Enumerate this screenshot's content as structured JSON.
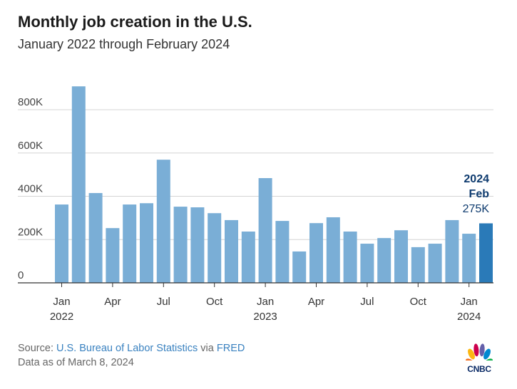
{
  "title": "Monthly job creation in the U.S.",
  "subtitle": "January 2022 through February 2024",
  "chart_data": {
    "type": "bar",
    "title": "Monthly job creation in the U.S.",
    "subtitle": "January 2022 through February 2024",
    "categories": [
      "Jan 2022",
      "Feb 2022",
      "Mar 2022",
      "Apr 2022",
      "May 2022",
      "Jun 2022",
      "Jul 2022",
      "Aug 2022",
      "Sep 2022",
      "Oct 2022",
      "Nov 2022",
      "Dec 2022",
      "Jan 2023",
      "Feb 2023",
      "Mar 2023",
      "Apr 2023",
      "May 2023",
      "Jun 2023",
      "Jul 2023",
      "Aug 2023",
      "Sep 2023",
      "Oct 2023",
      "Nov 2023",
      "Dec 2023",
      "Jan 2024",
      "Feb 2024"
    ],
    "values": [
      362,
      908,
      415,
      253,
      362,
      368,
      569,
      352,
      349,
      322,
      290,
      237,
      484,
      286,
      145,
      276,
      303,
      237,
      181,
      207,
      243,
      165,
      181,
      290,
      227,
      275
    ],
    "units": "thousands",
    "ylim": [
      0,
      950
    ],
    "yticks": [
      0,
      200,
      400,
      600,
      800
    ],
    "ytick_labels": [
      "0",
      "200K",
      "400K",
      "600K",
      "800K"
    ],
    "xticks": [
      {
        "index": 0,
        "label": "Jan",
        "year": "2022"
      },
      {
        "index": 3,
        "label": "Apr"
      },
      {
        "index": 6,
        "label": "Jul"
      },
      {
        "index": 9,
        "label": "Oct"
      },
      {
        "index": 12,
        "label": "Jan",
        "year": "2023"
      },
      {
        "index": 15,
        "label": "Apr"
      },
      {
        "index": 18,
        "label": "Jul"
      },
      {
        "index": 21,
        "label": "Oct"
      },
      {
        "index": 24,
        "label": "Jan",
        "year": "2024"
      }
    ],
    "annotation": {
      "year": "2024",
      "month": "Feb",
      "value": "275K"
    },
    "grid": true,
    "colors": {
      "bar": "#7aaed6",
      "highlight": "#2a7ab8",
      "annotation": "#0d3a6e"
    }
  },
  "footer": {
    "source_prefix": "Source: ",
    "source_link": "U.S. Bureau of Labor Statistics",
    "source_via": " via ",
    "source_fred": "FRED",
    "data_as_of": "Data as of March 8, 2024"
  },
  "logo": {
    "text": "CNBC"
  }
}
